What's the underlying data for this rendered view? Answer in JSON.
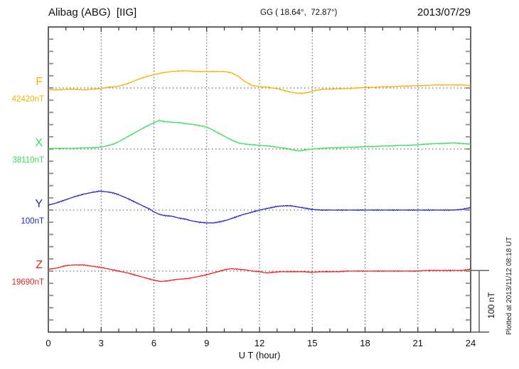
{
  "header": {
    "station": "Alibag (ABG)  [IIG]",
    "coordinates": "GG ( 18.64°,  72.87°)",
    "date": "2013/07/29"
  },
  "xaxis": {
    "label": "U T (hour)",
    "ticks": [
      "0",
      "3",
      "6",
      "9",
      "12",
      "15",
      "18",
      "21",
      "24"
    ]
  },
  "scalebar": {
    "label": "100 nT"
  },
  "footer_note": "Plotted at 2013/11/12 08:18 UT",
  "colors": {
    "F": "#FFAE00",
    "X": "#35DF55",
    "Y": "#2222CC",
    "Z": "#EE2222",
    "frame": "#222222",
    "grid_dots": "#444444",
    "side_ticks": "#888888"
  },
  "chart_data": {
    "type": "line",
    "title": "Alibag (ABG) [IIG] magnetogram, 2013/07/29",
    "xlabel": "U T (hour)",
    "x_range": [
      0,
      24
    ],
    "x_major_ticks": [
      0,
      3,
      6,
      9,
      12,
      15,
      18,
      21,
      24
    ],
    "x_minor_tick_step_hours": 1,
    "y_units": "nT",
    "y_px_grid": "side ticks every 20 nT, dotted baseline per component",
    "scale_bar_nT": 100,
    "grid": "dotted vertical lines every 3 h; dotted horizontal baseline for each trace",
    "legend_position": "left margin, one colored label per trace",
    "series": [
      {
        "name": "F",
        "baseline_label": "42420nT",
        "baseline_nT": 42420,
        "color": "#FFAE00",
        "points_hour_deltaNT": [
          [
            0,
            -3
          ],
          [
            0.5,
            -3
          ],
          [
            1,
            -2
          ],
          [
            1.5,
            -2
          ],
          [
            2,
            -3
          ],
          [
            2.5,
            -2
          ],
          [
            3,
            -1
          ],
          [
            3.3,
            1
          ],
          [
            3.7,
            2
          ],
          [
            4,
            3
          ],
          [
            4.5,
            7
          ],
          [
            5,
            13
          ],
          [
            5.5,
            18
          ],
          [
            6,
            22
          ],
          [
            6.5,
            25
          ],
          [
            7,
            27
          ],
          [
            7.5,
            28
          ],
          [
            8,
            28
          ],
          [
            8.3,
            27
          ],
          [
            8.7,
            27
          ],
          [
            9,
            27
          ],
          [
            9.5,
            27
          ],
          [
            10,
            27
          ],
          [
            10.4,
            25
          ],
          [
            10.8,
            19
          ],
          [
            11.2,
            10
          ],
          [
            11.6,
            4
          ],
          [
            12,
            2
          ],
          [
            12.5,
            1
          ],
          [
            13,
            -1
          ],
          [
            13.5,
            -5
          ],
          [
            14,
            -8
          ],
          [
            14.4,
            -9
          ],
          [
            14.8,
            -7
          ],
          [
            15.2,
            -4
          ],
          [
            15.6,
            -2
          ],
          [
            16,
            -2
          ],
          [
            16.5,
            -1
          ],
          [
            17,
            -1
          ],
          [
            17.5,
            0
          ],
          [
            18,
            1
          ],
          [
            18.5,
            1
          ],
          [
            19,
            2
          ],
          [
            19.5,
            2
          ],
          [
            20,
            3
          ],
          [
            20.5,
            3
          ],
          [
            21,
            4
          ],
          [
            21.5,
            4
          ],
          [
            22,
            5
          ],
          [
            22.5,
            5
          ],
          [
            23,
            5
          ],
          [
            23.5,
            5
          ],
          [
            24,
            4
          ]
        ]
      },
      {
        "name": "X",
        "baseline_label": "38110nT",
        "baseline_nT": 38110,
        "color": "#35DF55",
        "points_hour_deltaNT": [
          [
            0,
            1
          ],
          [
            0.5,
            1
          ],
          [
            1,
            1
          ],
          [
            1.5,
            1
          ],
          [
            2,
            2
          ],
          [
            2.5,
            2
          ],
          [
            3,
            3
          ],
          [
            3.3,
            5
          ],
          [
            3.7,
            8
          ],
          [
            4,
            12
          ],
          [
            4.5,
            20
          ],
          [
            5,
            28
          ],
          [
            5.5,
            36
          ],
          [
            6,
            43
          ],
          [
            6.3,
            47
          ],
          [
            6.6,
            45
          ],
          [
            7,
            44
          ],
          [
            7.5,
            43
          ],
          [
            8,
            41
          ],
          [
            8.5,
            39
          ],
          [
            9,
            36
          ],
          [
            9.3,
            32
          ],
          [
            9.6,
            27
          ],
          [
            10,
            21
          ],
          [
            10.4,
            15
          ],
          [
            10.8,
            10
          ],
          [
            11.2,
            8
          ],
          [
            11.6,
            7
          ],
          [
            12,
            6
          ],
          [
            12.5,
            5
          ],
          [
            13,
            3
          ],
          [
            13.5,
            1
          ],
          [
            14,
            -2
          ],
          [
            14.3,
            -3
          ],
          [
            14.7,
            -1
          ],
          [
            15,
            0
          ],
          [
            15.5,
            1
          ],
          [
            16,
            2
          ],
          [
            16.5,
            2
          ],
          [
            17,
            3
          ],
          [
            17.5,
            3
          ],
          [
            18,
            4
          ],
          [
            18.5,
            4
          ],
          [
            19,
            5
          ],
          [
            19.5,
            5
          ],
          [
            20,
            6
          ],
          [
            20.5,
            6
          ],
          [
            21,
            7
          ],
          [
            21.5,
            8
          ],
          [
            22,
            9
          ],
          [
            22.5,
            9
          ],
          [
            23,
            10
          ],
          [
            23.5,
            9
          ],
          [
            24,
            8
          ]
        ]
      },
      {
        "name": "Y",
        "baseline_label": "100nT",
        "baseline_nT": 100,
        "color": "#2222CC",
        "points_hour_deltaNT": [
          [
            0,
            8
          ],
          [
            0.5,
            12
          ],
          [
            1,
            17
          ],
          [
            1.5,
            22
          ],
          [
            2,
            26
          ],
          [
            2.5,
            29
          ],
          [
            2.9,
            31
          ],
          [
            3.3,
            30
          ],
          [
            3.7,
            28
          ],
          [
            4,
            25
          ],
          [
            4.5,
            19
          ],
          [
            5,
            12
          ],
          [
            5.5,
            5
          ],
          [
            5.8,
            1
          ],
          [
            6,
            -3
          ],
          [
            6.3,
            -7
          ],
          [
            6.6,
            -9
          ],
          [
            7,
            -10
          ],
          [
            7.4,
            -13
          ],
          [
            7.8,
            -15
          ],
          [
            8.2,
            -18
          ],
          [
            8.6,
            -20
          ],
          [
            9,
            -21
          ],
          [
            9.4,
            -21
          ],
          [
            9.8,
            -19
          ],
          [
            10.2,
            -16
          ],
          [
            10.6,
            -12
          ],
          [
            11,
            -8
          ],
          [
            11.5,
            -4
          ],
          [
            12,
            0
          ],
          [
            12.5,
            3
          ],
          [
            13,
            6
          ],
          [
            13.4,
            7
          ],
          [
            13.8,
            7
          ],
          [
            14.2,
            5
          ],
          [
            14.6,
            3
          ],
          [
            15,
            1
          ],
          [
            15.5,
            0
          ],
          [
            16,
            0
          ],
          [
            17,
            0
          ],
          [
            18,
            0
          ],
          [
            19,
            0
          ],
          [
            20,
            0
          ],
          [
            21,
            0
          ],
          [
            22,
            0
          ],
          [
            23,
            0
          ],
          [
            23.5,
            1
          ],
          [
            24,
            4
          ]
        ]
      },
      {
        "name": "Z",
        "baseline_label": "19690nT",
        "baseline_nT": 19690,
        "color": "#EE2222",
        "points_hour_deltaNT": [
          [
            0,
            3
          ],
          [
            0.5,
            5
          ],
          [
            1,
            9
          ],
          [
            1.5,
            10
          ],
          [
            2,
            10
          ],
          [
            2.5,
            8
          ],
          [
            3,
            6
          ],
          [
            3.5,
            3
          ],
          [
            4,
            0
          ],
          [
            4.5,
            -3
          ],
          [
            5,
            -7
          ],
          [
            5.5,
            -11
          ],
          [
            6,
            -15
          ],
          [
            6.4,
            -17
          ],
          [
            6.8,
            -16
          ],
          [
            7.2,
            -14
          ],
          [
            7.6,
            -13
          ],
          [
            8,
            -12
          ],
          [
            8.5,
            -9
          ],
          [
            9,
            -6
          ],
          [
            9.5,
            -2
          ],
          [
            10,
            2
          ],
          [
            10.4,
            4
          ],
          [
            10.8,
            3
          ],
          [
            11.2,
            2
          ],
          [
            11.6,
            0
          ],
          [
            12,
            -1
          ],
          [
            12.4,
            -3
          ],
          [
            12.8,
            -2
          ],
          [
            13.2,
            -1
          ],
          [
            14,
            -1
          ],
          [
            14.5,
            -1
          ],
          [
            15,
            -2
          ],
          [
            15.5,
            -1
          ],
          [
            16,
            -1
          ],
          [
            16.5,
            -1
          ],
          [
            17,
            0
          ],
          [
            18,
            0
          ],
          [
            19,
            0
          ],
          [
            20,
            0
          ],
          [
            21,
            0
          ],
          [
            21.5,
            1
          ],
          [
            22,
            1
          ],
          [
            23,
            1
          ],
          [
            23.5,
            1
          ],
          [
            24,
            3
          ]
        ]
      }
    ]
  }
}
